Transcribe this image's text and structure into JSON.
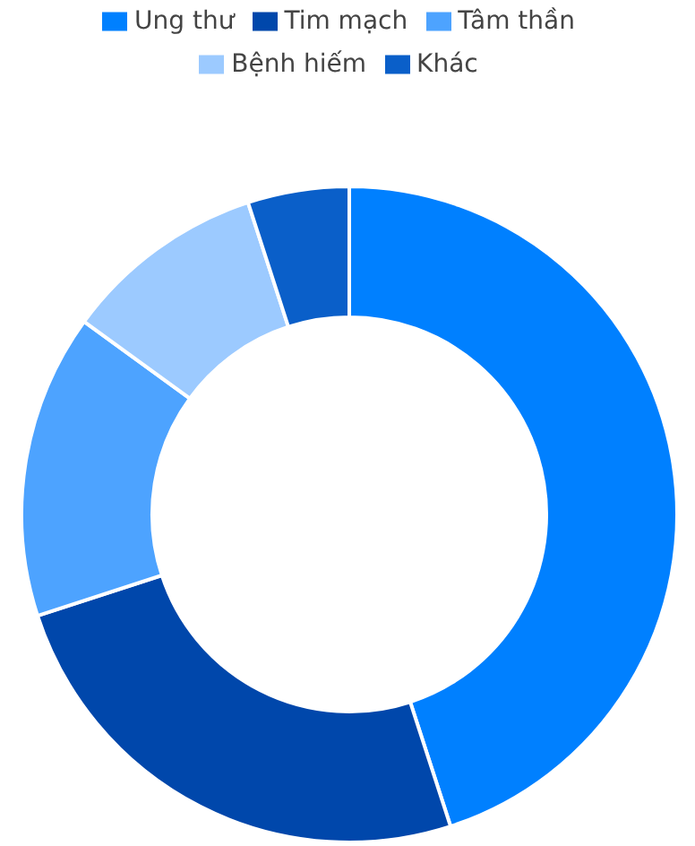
{
  "chart_data": {
    "type": "donut",
    "categories": [
      "Ung thư",
      "Tim mạch",
      "Tâm thần",
      "Bệnh hiếm",
      "Khác"
    ],
    "values": [
      45,
      25,
      15,
      10,
      5
    ],
    "colors": [
      "#0080ff",
      "#0047ab",
      "#4da3ff",
      "#9ccaff",
      "#0a5fc9"
    ],
    "legend": "top"
  }
}
